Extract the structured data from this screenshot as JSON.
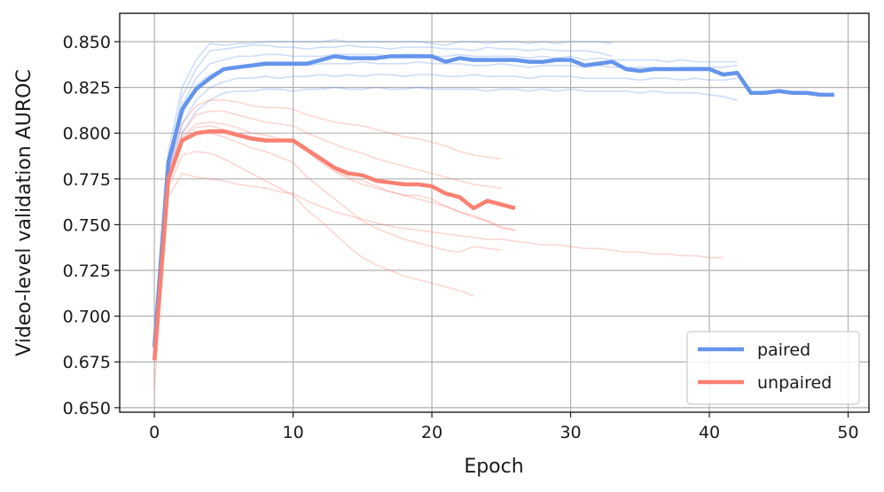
{
  "chart_data": {
    "type": "line",
    "title": "",
    "xlabel": "Epoch",
    "ylabel": "Video-level validation AUROC",
    "xlim": [
      -2.5,
      51.5
    ],
    "ylim": [
      0.6475,
      0.8655
    ],
    "xticks": [
      0,
      10,
      20,
      30,
      40,
      50
    ],
    "yticks": [
      0.65,
      0.675,
      0.7,
      0.725,
      0.75,
      0.775,
      0.8,
      0.825,
      0.85
    ],
    "grid": true,
    "legend": {
      "position": "bottom-right",
      "entries": [
        "paired",
        "unpaired"
      ]
    },
    "colors": {
      "paired": "#6495ed",
      "unpaired": "#fa8072"
    },
    "series": [
      {
        "name": "paired",
        "x": [
          0,
          1,
          2,
          3,
          4,
          5,
          6,
          7,
          8,
          9,
          10,
          11,
          12,
          13,
          14,
          15,
          16,
          17,
          18,
          19,
          20,
          21,
          22,
          23,
          24,
          25,
          26,
          27,
          28,
          29,
          30,
          31,
          32,
          33,
          34,
          35,
          36,
          37,
          38,
          39,
          40,
          41,
          42,
          43,
          44,
          45,
          46,
          47,
          48,
          49
        ],
        "values": [
          0.683,
          0.784,
          0.813,
          0.824,
          0.83,
          0.835,
          0.836,
          0.837,
          0.838,
          0.838,
          0.838,
          0.838,
          0.84,
          0.842,
          0.841,
          0.841,
          0.841,
          0.842,
          0.842,
          0.842,
          0.842,
          0.839,
          0.841,
          0.84,
          0.84,
          0.84,
          0.84,
          0.839,
          0.839,
          0.84,
          0.84,
          0.837,
          0.838,
          0.839,
          0.835,
          0.834,
          0.835,
          0.835,
          0.835,
          0.835,
          0.835,
          0.832,
          0.833,
          0.822,
          0.822,
          0.823,
          0.822,
          0.822,
          0.821,
          0.821
        ]
      },
      {
        "name": "unpaired",
        "x": [
          0,
          1,
          2,
          3,
          4,
          5,
          6,
          7,
          8,
          9,
          10,
          11,
          12,
          13,
          14,
          15,
          16,
          17,
          18,
          19,
          20,
          21,
          22,
          23,
          24,
          25,
          26
        ],
        "values": [
          0.676,
          0.775,
          0.796,
          0.8,
          0.801,
          0.801,
          0.799,
          0.797,
          0.796,
          0.796,
          0.796,
          0.791,
          0.786,
          0.781,
          0.778,
          0.777,
          0.774,
          0.773,
          0.772,
          0.772,
          0.771,
          0.767,
          0.765,
          0.759,
          0.763,
          0.761,
          0.759
        ]
      }
    ],
    "individual_runs": {
      "paired": [
        {
          "x": [
            0,
            1,
            2,
            3,
            4,
            5,
            6,
            7,
            8,
            9,
            10,
            11,
            12,
            13,
            14,
            15,
            16,
            17,
            18,
            19,
            20,
            21,
            22,
            23,
            24,
            25,
            26,
            27,
            28,
            29,
            30,
            31,
            32,
            33
          ],
          "values": [
            0.68,
            0.79,
            0.825,
            0.84,
            0.849,
            0.848,
            0.849,
            0.849,
            0.85,
            0.85,
            0.85,
            0.85,
            0.85,
            0.851,
            0.85,
            0.85,
            0.85,
            0.85,
            0.85,
            0.85,
            0.849,
            0.848,
            0.85,
            0.85,
            0.849,
            0.85,
            0.85,
            0.849,
            0.85,
            0.849,
            0.85,
            0.85,
            0.85,
            0.849
          ]
        },
        {
          "x": [
            0,
            1,
            2,
            3,
            4,
            5,
            6,
            7,
            8,
            9,
            10,
            11,
            12,
            13,
            14,
            15,
            16,
            17,
            18,
            19,
            20,
            21,
            22,
            23,
            24,
            25,
            26,
            27,
            28,
            29,
            30,
            31,
            32,
            33
          ],
          "values": [
            0.682,
            0.785,
            0.82,
            0.835,
            0.845,
            0.846,
            0.847,
            0.848,
            0.848,
            0.847,
            0.847,
            0.846,
            0.847,
            0.847,
            0.848,
            0.847,
            0.847,
            0.846,
            0.847,
            0.847,
            0.847,
            0.846,
            0.846,
            0.845,
            0.847,
            0.846,
            0.846,
            0.845,
            0.846,
            0.845,
            0.845,
            0.845,
            0.844,
            0.842
          ]
        },
        {
          "x": [
            0,
            1,
            2,
            3,
            4,
            5,
            6,
            7,
            8,
            9,
            10,
            11,
            12,
            13,
            14,
            15,
            16,
            17,
            18,
            19,
            20,
            21,
            22,
            23,
            24,
            25,
            26,
            27,
            28,
            29,
            30,
            31,
            32,
            33,
            34,
            35,
            36,
            37,
            38,
            39,
            40,
            41,
            42
          ],
          "values": [
            0.683,
            0.78,
            0.815,
            0.83,
            0.838,
            0.84,
            0.842,
            0.842,
            0.843,
            0.843,
            0.842,
            0.842,
            0.842,
            0.843,
            0.843,
            0.843,
            0.843,
            0.842,
            0.843,
            0.843,
            0.842,
            0.842,
            0.843,
            0.842,
            0.842,
            0.842,
            0.842,
            0.841,
            0.842,
            0.841,
            0.842,
            0.84,
            0.841,
            0.84,
            0.84,
            0.84,
            0.84,
            0.839,
            0.84,
            0.839,
            0.839,
            0.839,
            0.839
          ]
        },
        {
          "x": [
            0,
            1,
            2,
            3,
            4,
            5,
            6,
            7,
            8,
            9,
            10,
            11,
            12,
            13,
            14,
            15,
            16,
            17,
            18,
            19,
            20,
            21,
            22,
            23,
            24,
            25,
            26,
            27,
            28,
            29,
            30,
            31,
            32,
            33,
            34,
            35,
            36,
            37,
            38,
            39,
            40,
            41,
            42
          ],
          "values": [
            0.684,
            0.778,
            0.81,
            0.826,
            0.832,
            0.835,
            0.836,
            0.836,
            0.837,
            0.837,
            0.837,
            0.837,
            0.838,
            0.838,
            0.838,
            0.839,
            0.838,
            0.838,
            0.838,
            0.839,
            0.838,
            0.838,
            0.838,
            0.837,
            0.837,
            0.838,
            0.837,
            0.836,
            0.837,
            0.837,
            0.837,
            0.836,
            0.837,
            0.836,
            0.836,
            0.836,
            0.836,
            0.835,
            0.836,
            0.836,
            0.836,
            0.836,
            0.837
          ]
        },
        {
          "x": [
            0,
            1,
            2,
            3,
            4,
            5,
            6,
            7,
            8,
            9,
            10,
            11,
            12,
            13,
            14,
            15,
            16,
            17,
            18,
            19,
            20,
            21,
            22,
            23,
            24,
            25,
            26,
            27,
            28,
            29,
            30,
            31,
            32,
            33,
            34,
            35,
            36,
            37,
            38,
            39,
            40,
            41,
            42
          ],
          "values": [
            0.685,
            0.775,
            0.805,
            0.818,
            0.825,
            0.828,
            0.83,
            0.83,
            0.831,
            0.83,
            0.831,
            0.831,
            0.832,
            0.831,
            0.832,
            0.831,
            0.832,
            0.832,
            0.831,
            0.832,
            0.832,
            0.831,
            0.831,
            0.832,
            0.831,
            0.831,
            0.831,
            0.83,
            0.831,
            0.831,
            0.831,
            0.83,
            0.83,
            0.83,
            0.83,
            0.829,
            0.83,
            0.83,
            0.829,
            0.83,
            0.829,
            0.829,
            0.83
          ]
        },
        {
          "x": [
            0,
            1,
            2,
            3,
            4,
            5,
            6,
            7,
            8,
            9,
            10,
            11,
            12,
            13,
            14,
            15,
            16,
            17,
            18,
            19,
            20,
            21,
            22,
            23,
            24,
            25,
            26,
            27,
            28,
            29,
            30,
            31,
            32,
            33,
            34,
            35,
            36,
            37,
            38,
            39,
            40,
            41,
            42
          ],
          "values": [
            0.686,
            0.772,
            0.8,
            0.812,
            0.818,
            0.822,
            0.823,
            0.823,
            0.824,
            0.824,
            0.823,
            0.824,
            0.824,
            0.825,
            0.824,
            0.824,
            0.825,
            0.824,
            0.824,
            0.825,
            0.824,
            0.824,
            0.824,
            0.824,
            0.823,
            0.824,
            0.824,
            0.823,
            0.824,
            0.823,
            0.824,
            0.823,
            0.823,
            0.823,
            0.823,
            0.822,
            0.823,
            0.822,
            0.822,
            0.822,
            0.821,
            0.82,
            0.818
          ]
        }
      ],
      "unpaired": [
        {
          "x": [
            0,
            1,
            2,
            3,
            4,
            5,
            6,
            7,
            8,
            9,
            10,
            11,
            12,
            13,
            14,
            15,
            16,
            17,
            18,
            19,
            20,
            21,
            22,
            23,
            24,
            25
          ],
          "values": [
            0.675,
            0.78,
            0.805,
            0.815,
            0.818,
            0.818,
            0.817,
            0.815,
            0.814,
            0.814,
            0.813,
            0.81,
            0.808,
            0.806,
            0.805,
            0.804,
            0.802,
            0.8,
            0.798,
            0.797,
            0.795,
            0.793,
            0.79,
            0.788,
            0.787,
            0.786
          ]
        },
        {
          "x": [
            0,
            1,
            2,
            3,
            4,
            5,
            6,
            7,
            8,
            9,
            10,
            11,
            12,
            13,
            14,
            15,
            16,
            17,
            18,
            19,
            20,
            21,
            22,
            23,
            24,
            25
          ],
          "values": [
            0.676,
            0.778,
            0.8,
            0.81,
            0.812,
            0.812,
            0.81,
            0.808,
            0.806,
            0.805,
            0.804,
            0.8,
            0.797,
            0.794,
            0.791,
            0.789,
            0.786,
            0.784,
            0.782,
            0.78,
            0.778,
            0.776,
            0.774,
            0.772,
            0.771,
            0.77
          ]
        },
        {
          "x": [
            0,
            1,
            2,
            3,
            4,
            5,
            6,
            7,
            8,
            9,
            10,
            11,
            12,
            13,
            14,
            15,
            16,
            17,
            18,
            19,
            20,
            21,
            22,
            23,
            24,
            25,
            26
          ],
          "values": [
            0.677,
            0.775,
            0.798,
            0.805,
            0.806,
            0.805,
            0.803,
            0.8,
            0.799,
            0.797,
            0.795,
            0.79,
            0.785,
            0.78,
            0.776,
            0.774,
            0.771,
            0.768,
            0.766,
            0.764,
            0.762,
            0.76,
            0.757,
            0.755,
            0.752,
            0.749,
            0.747
          ]
        },
        {
          "x": [
            0,
            1,
            2,
            3,
            4,
            5,
            6,
            7,
            8,
            9,
            10,
            11,
            12,
            13,
            14,
            15,
            16,
            17,
            18,
            19,
            20,
            21,
            22,
            23,
            24,
            25
          ],
          "values": [
            0.675,
            0.772,
            0.795,
            0.8,
            0.8,
            0.798,
            0.795,
            0.792,
            0.79,
            0.787,
            0.784,
            0.776,
            0.77,
            0.764,
            0.758,
            0.752,
            0.748,
            0.745,
            0.742,
            0.74,
            0.738,
            0.736,
            0.735,
            0.738,
            0.737,
            0.736
          ]
        },
        {
          "x": [
            0,
            1,
            2,
            3,
            4,
            5,
            6,
            7,
            8,
            9,
            10,
            11,
            12,
            13,
            14,
            15,
            16,
            17,
            18,
            19,
            20,
            21,
            22,
            23,
            24,
            25,
            26
          ],
          "values": [
            0.676,
            0.773,
            0.797,
            0.803,
            0.804,
            0.802,
            0.8,
            0.798,
            0.797,
            0.796,
            0.795,
            0.79,
            0.784,
            0.779,
            0.775,
            0.772,
            0.77,
            0.768,
            0.766,
            0.766,
            0.764,
            0.76,
            0.757,
            0.754,
            0.752,
            0.748,
            0.747
          ]
        },
        {
          "x": [
            0,
            1,
            2,
            3,
            4,
            5,
            6,
            7,
            8,
            9,
            10,
            11,
            12,
            13,
            14,
            15,
            16,
            17,
            18,
            19,
            20,
            21,
            22,
            23
          ],
          "values": [
            0.675,
            0.77,
            0.788,
            0.79,
            0.789,
            0.786,
            0.782,
            0.778,
            0.774,
            0.77,
            0.766,
            0.758,
            0.752,
            0.745,
            0.738,
            0.732,
            0.728,
            0.725,
            0.722,
            0.72,
            0.718,
            0.716,
            0.714,
            0.711
          ]
        },
        {
          "x": [
            0,
            1,
            2,
            3,
            4,
            5,
            6,
            7,
            8,
            9,
            10,
            11,
            12,
            13,
            14,
            15,
            16,
            17,
            18,
            19,
            20,
            21,
            22,
            23,
            24,
            25,
            26,
            27,
            28,
            29,
            30,
            31,
            32,
            33,
            34,
            35,
            36,
            37,
            38,
            39,
            40,
            41
          ],
          "values": [
            0.66,
            0.765,
            0.778,
            0.776,
            0.775,
            0.774,
            0.772,
            0.771,
            0.77,
            0.768,
            0.767,
            0.763,
            0.76,
            0.757,
            0.755,
            0.753,
            0.751,
            0.749,
            0.748,
            0.747,
            0.746,
            0.745,
            0.744,
            0.743,
            0.742,
            0.742,
            0.741,
            0.74,
            0.739,
            0.739,
            0.738,
            0.737,
            0.737,
            0.736,
            0.735,
            0.735,
            0.734,
            0.734,
            0.733,
            0.733,
            0.732,
            0.732
          ]
        }
      ]
    }
  }
}
